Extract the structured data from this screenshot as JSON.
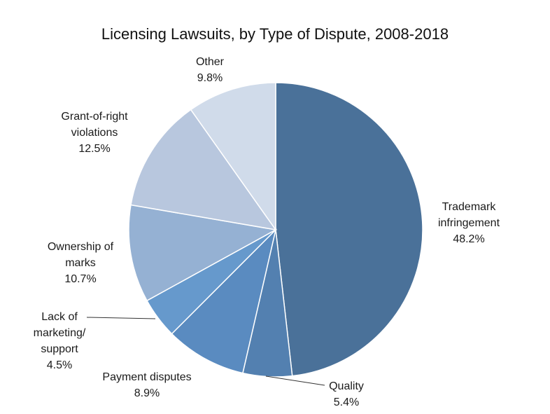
{
  "chart_data": {
    "type": "pie",
    "title": "Licensing Lawsuits, by Type of Dispute, 2008-2018",
    "start_angle_deg": 0,
    "direction": "clockwise",
    "slices": [
      {
        "name": "Trademark infringement",
        "label_lines": [
          "Trademark",
          "infringement"
        ],
        "value": 48.2,
        "value_label": "48.2%",
        "color": "#4a7199"
      },
      {
        "name": "Quality",
        "label_lines": [
          "Quality"
        ],
        "value": 5.4,
        "value_label": "5.4%",
        "color": "#5380b0"
      },
      {
        "name": "Payment disputes",
        "label_lines": [
          "Payment disputes"
        ],
        "value": 8.9,
        "value_label": "8.9%",
        "color": "#5a8bc0"
      },
      {
        "name": "Lack of marketing/ support",
        "label_lines": [
          "Lack of",
          "marketing/",
          "support"
        ],
        "value": 4.5,
        "value_label": "4.5%",
        "color": "#6699cc"
      },
      {
        "name": "Ownership of marks",
        "label_lines": [
          "Ownership of",
          "marks"
        ],
        "value": 10.7,
        "value_label": "10.7%",
        "color": "#95b1d3"
      },
      {
        "name": "Grant-of-right violations",
        "label_lines": [
          "Grant-of-right",
          "violations"
        ],
        "value": 12.5,
        "value_label": "12.5%",
        "color": "#b8c7de"
      },
      {
        "name": "Other",
        "label_lines": [
          "Other"
        ],
        "value": 9.8,
        "value_label": "9.8%",
        "color": "#d0dbea"
      }
    ]
  }
}
